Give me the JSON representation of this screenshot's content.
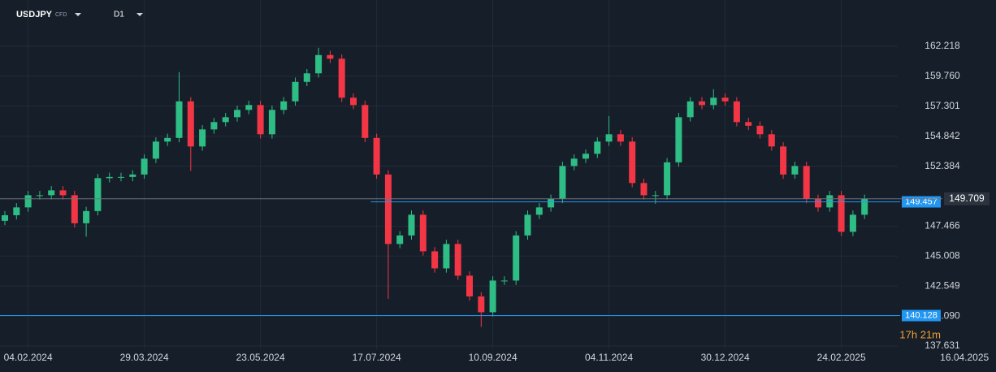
{
  "header": {
    "symbol": "USDJPY",
    "badge": "CFD",
    "timeframe": "D1"
  },
  "chart_data": {
    "type": "candlestick",
    "up_color": "#2ebd85",
    "down_color": "#f23645",
    "open": [
      147.9,
      148.36,
      149.0,
      150.0,
      150.0,
      150.4,
      150.0,
      147.7,
      148.7,
      151.4,
      151.5,
      151.5,
      151.7,
      153.0,
      154.4,
      154.7,
      157.7,
      154.0,
      155.4,
      156.0,
      156.4,
      157.0,
      157.4,
      155.0,
      157.0,
      157.7,
      159.3,
      160.0,
      161.5,
      161.2,
      158.0,
      157.4,
      154.7,
      151.7,
      146.0,
      146.7,
      148.4,
      145.4,
      144.0,
      146.0,
      143.4,
      141.7,
      140.4,
      143.0,
      143.0,
      146.7,
      148.4,
      149.0,
      149.7,
      152.4,
      153.0,
      153.4,
      154.4,
      155.0,
      154.4,
      151.0,
      150.0,
      150.0,
      152.7,
      156.4,
      157.7,
      157.4,
      158.0,
      157.7,
      156.0,
      155.7,
      155.0,
      154.0,
      151.7,
      152.4,
      149.7,
      149.0,
      150.0,
      147.0,
      148.4
    ],
    "high": [
      148.71,
      149.35,
      150.35,
      150.35,
      150.75,
      150.75,
      150.35,
      149.05,
      151.75,
      151.85,
      151.85,
      152.05,
      153.35,
      154.75,
      155.05,
      160.1,
      158.05,
      155.75,
      156.35,
      156.75,
      157.35,
      157.75,
      157.75,
      157.35,
      158.05,
      159.65,
      160.35,
      162.1,
      161.85,
      161.55,
      158.35,
      157.75,
      155.05,
      152.05,
      147.05,
      148.75,
      148.75,
      145.75,
      146.35,
      146.35,
      143.75,
      142.05,
      143.35,
      143.35,
      147.05,
      148.75,
      149.35,
      150.05,
      152.75,
      153.35,
      153.75,
      154.75,
      156.5,
      155.35,
      154.75,
      151.35,
      150.35,
      153.05,
      156.75,
      158.05,
      158.05,
      158.7,
      158.35,
      158.05,
      156.35,
      156.05,
      155.35,
      154.35,
      152.75,
      152.75,
      150.05,
      150.35,
      150.35,
      148.75,
      150.05
    ],
    "low": [
      147.55,
      148.01,
      148.65,
      149.65,
      149.65,
      149.65,
      147.35,
      146.6,
      148.35,
      151.05,
      151.15,
      151.15,
      151.35,
      152.65,
      154.05,
      154.35,
      152.0,
      153.65,
      155.05,
      155.65,
      156.05,
      156.65,
      154.65,
      154.65,
      156.65,
      157.35,
      158.95,
      159.65,
      160.85,
      157.65,
      157.05,
      154.35,
      151.35,
      141.5,
      145.65,
      146.35,
      145.05,
      143.65,
      143.65,
      143.05,
      141.35,
      139.2,
      140.05,
      142.65,
      142.65,
      146.35,
      148.05,
      148.65,
      149.35,
      152.05,
      152.65,
      153.05,
      154.05,
      154.05,
      150.65,
      149.65,
      149.3,
      149.65,
      152.35,
      156.05,
      157.05,
      157.05,
      157.35,
      155.65,
      155.35,
      154.65,
      153.65,
      151.35,
      151.35,
      149.35,
      148.65,
      148.65,
      146.65,
      146.65,
      148.05
    ],
    "close": [
      148.36,
      149.0,
      150.0,
      150.0,
      150.4,
      150.0,
      147.7,
      148.7,
      151.4,
      151.5,
      151.5,
      151.7,
      153.0,
      154.4,
      154.7,
      157.7,
      154.0,
      155.4,
      156.0,
      156.4,
      157.0,
      157.4,
      155.0,
      157.0,
      157.7,
      159.3,
      160.0,
      161.5,
      161.2,
      158.0,
      157.4,
      154.7,
      151.7,
      146.0,
      146.7,
      148.4,
      145.4,
      144.0,
      146.0,
      143.4,
      141.7,
      140.4,
      143.0,
      143.0,
      146.7,
      148.4,
      149.0,
      149.7,
      152.4,
      153.0,
      153.4,
      154.4,
      155.0,
      154.4,
      151.0,
      150.0,
      150.0,
      152.7,
      156.4,
      157.7,
      157.4,
      158.0,
      157.7,
      156.0,
      155.7,
      155.0,
      154.0,
      151.7,
      152.4,
      149.7,
      149.0,
      150.0,
      147.0,
      148.4,
      149.709
    ],
    "ylim": [
      137.364,
      164.017
    ],
    "yticks": [
      137.631,
      {
        "value": 140.09,
        "label": "140.090"
      },
      142.549,
      145.008,
      147.466,
      152.384,
      154.842,
      157.301,
      {
        "value": 159.76,
        "label": "159.760"
      },
      162.218
    ],
    "xticks": [
      {
        "value": 2,
        "label": "04.02.2024"
      },
      {
        "value": 12,
        "label": "29.03.2024"
      },
      {
        "value": 22,
        "label": "23.05.2024"
      },
      {
        "value": 32,
        "label": "17.07.2024"
      },
      {
        "value": 42,
        "label": "10.09.2024"
      },
      {
        "value": 52,
        "label": "04.11.2024"
      },
      {
        "value": 62,
        "label": "30.12.2024"
      },
      {
        "value": 72,
        "label": "24.02.2025"
      },
      {
        "value": 82.6,
        "label": "16.04.2025"
      }
    ],
    "grid": true,
    "current_price": 149.709,
    "levels": [
      {
        "value": 149.457,
        "color": "#2196f3",
        "start": 32
      },
      {
        "value": 140.128,
        "color": "#2196f3",
        "start": 0
      }
    ],
    "countdown": "17h 21m"
  }
}
